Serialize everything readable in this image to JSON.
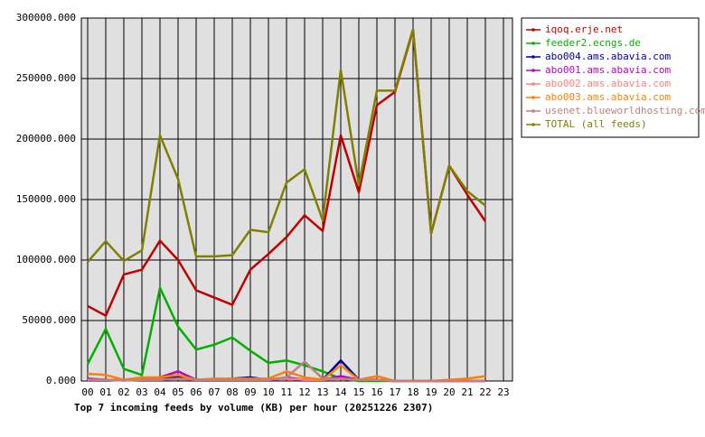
{
  "chart_data": {
    "type": "line",
    "xlabel": "Top 7 incoming feeds by volume (KB) per hour (20251226 2307)",
    "categories": [
      "00",
      "01",
      "02",
      "03",
      "04",
      "05",
      "06",
      "07",
      "08",
      "09",
      "10",
      "11",
      "12",
      "13",
      "14",
      "15",
      "16",
      "17",
      "18",
      "19",
      "20",
      "21",
      "22",
      "23"
    ],
    "ylim": [
      0,
      300000
    ],
    "yticks": [
      {
        "value": 0,
        "label": "0.000"
      },
      {
        "value": 50000,
        "label": "50000.000"
      },
      {
        "value": 100000,
        "label": "100000.000"
      },
      {
        "value": 150000,
        "label": "150000.000"
      },
      {
        "value": 200000,
        "label": "200000.000"
      },
      {
        "value": 250000,
        "label": "250000.000"
      },
      {
        "value": 300000,
        "label": "300000.000"
      }
    ],
    "grid": true,
    "series": [
      {
        "name": "iqoq.erje.net",
        "color": "#c00000",
        "values": [
          62000,
          54000,
          88000,
          92000,
          116000,
          100000,
          75000,
          69000,
          63000,
          92000,
          105000,
          119000,
          137000,
          124000,
          203000,
          156000,
          228000,
          239000,
          290000,
          122000,
          178000,
          154000,
          132000,
          null
        ]
      },
      {
        "name": "feeder2.ecngs.de",
        "color": "#00b000",
        "values": [
          14000,
          43000,
          10000,
          5000,
          77000,
          45000,
          26000,
          30000,
          36000,
          25000,
          15000,
          17000,
          13000,
          8000,
          2000,
          0,
          0,
          0,
          0,
          0,
          0,
          0,
          0,
          null
        ]
      },
      {
        "name": "abo004.ams.abavia.com",
        "color": "#0000a0",
        "values": [
          1000,
          1000,
          500,
          1000,
          2000,
          3000,
          1000,
          1000,
          2000,
          3000,
          1000,
          2000,
          1000,
          1000,
          17000,
          1000,
          1000,
          0,
          0,
          0,
          0,
          0,
          0,
          null
        ]
      },
      {
        "name": "abo001.ams.abavia.com",
        "color": "#c000c0",
        "values": [
          2000,
          1000,
          500,
          2000,
          3000,
          8000,
          1000,
          1000,
          1000,
          1000,
          1000,
          3000,
          1000,
          1000,
          4000,
          1000,
          1000,
          0,
          0,
          0,
          0,
          0,
          0,
          null
        ]
      },
      {
        "name": "abo002.ams.abavia.com",
        "color": "#ff8080",
        "values": [
          1000,
          1000,
          500,
          1000,
          1000,
          2000,
          1000,
          1000,
          1000,
          1000,
          1000,
          2000,
          1000,
          1000,
          2000,
          1000,
          1000,
          0,
          0,
          0,
          0,
          0,
          0,
          null
        ]
      },
      {
        "name": "abo003.ams.abavia.com",
        "color": "#ff8000",
        "values": [
          6000,
          5000,
          1000,
          3000,
          3000,
          5000,
          1000,
          2000,
          2000,
          2000,
          2000,
          8000,
          3000,
          1000,
          13000,
          1000,
          4000,
          0,
          0,
          0,
          1000,
          2000,
          4000,
          null
        ]
      },
      {
        "name": "usenet.blueworldhosting.com",
        "color": "#c08080",
        "values": [
          1000,
          1000,
          500,
          1000,
          1000,
          2000,
          1000,
          1000,
          1000,
          1000,
          1000,
          3000,
          16000,
          2000,
          2000,
          1000,
          1000,
          0,
          0,
          0,
          0,
          0,
          0,
          null
        ]
      },
      {
        "name": "TOTAL (all feeds)",
        "color": "#808000",
        "values": [
          98500,
          115600,
          99200,
          108000,
          203000,
          167000,
          103000,
          103000,
          104000,
          125000,
          123000,
          164000,
          175000,
          133000,
          257000,
          162000,
          240000,
          240000,
          291000,
          122000,
          178000,
          157000,
          145000,
          null
        ]
      }
    ]
  }
}
